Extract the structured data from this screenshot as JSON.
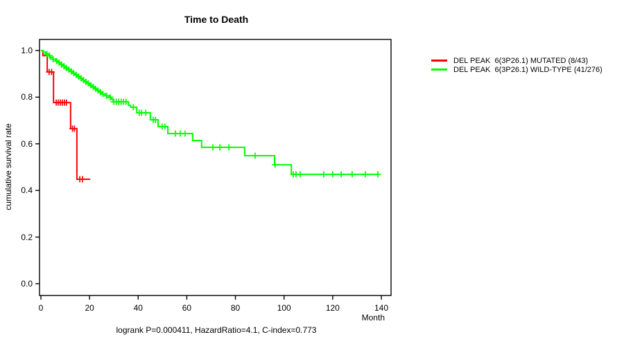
{
  "header": {
    "title": "Time to Death"
  },
  "axes": {
    "y_label": "cumulative survival rate",
    "x_unit": "Month"
  },
  "footer": {
    "stats": "logrank P=0.000411, HazardRatio=4.1, C-index=0.773"
  },
  "legend": {
    "items": [
      {
        "label": "DEL PEAK  6(3P26.1) MUTATED (8/43)",
        "color": "#ff0000"
      },
      {
        "label": "DEL PEAK  6(3P26.1) WILD-TYPE (41/276)",
        "color": "#00ff00"
      }
    ]
  },
  "chart_data": {
    "type": "line",
    "subtype": "kaplan-meier-step",
    "title": "Time to Death",
    "xlabel": "Month",
    "ylabel": "cumulative survival rate",
    "xlim": [
      0,
      140
    ],
    "ylim": [
      0.0,
      1.0
    ],
    "xticks": [
      0,
      20,
      40,
      60,
      80,
      100,
      120,
      140
    ],
    "yticks": [
      0.0,
      0.2,
      0.4,
      0.6,
      0.8,
      1.0
    ],
    "ytick_labels": [
      "0.0",
      "0.2",
      "0.4",
      "0.6",
      "0.8",
      "1.0"
    ],
    "grid": false,
    "legend_position": "right-outside",
    "annotation": "logrank P=0.000411, HazardRatio=4.1, C-index=0.773",
    "series": [
      {
        "name": "DEL PEAK  6(3P26.1) MUTATED (8/43)",
        "color": "#ff0000",
        "steps": [
          [
            0,
            1.0
          ],
          [
            0.8,
            0.978
          ],
          [
            2.6,
            0.908
          ],
          [
            5.2,
            0.777
          ],
          [
            12.2,
            0.665
          ],
          [
            14.8,
            0.448
          ]
        ],
        "end": 20.3,
        "censors": [
          3.4,
          4.4,
          6.3,
          7.1,
          8.0,
          8.8,
          9.7,
          10.5,
          13.0,
          13.8,
          16.0,
          17.1
        ]
      },
      {
        "name": "DEL PEAK  6(3P26.1) WILD-TYPE (41/276)",
        "color": "#00ff00",
        "steps": [
          [
            0,
            1.0
          ],
          [
            1,
            0.993
          ],
          [
            2,
            0.985
          ],
          [
            3,
            0.978
          ],
          [
            4,
            0.97
          ],
          [
            5,
            0.963
          ],
          [
            6,
            0.955
          ],
          [
            7,
            0.948
          ],
          [
            8,
            0.94
          ],
          [
            9,
            0.933
          ],
          [
            10,
            0.925
          ],
          [
            11,
            0.918
          ],
          [
            12,
            0.911
          ],
          [
            13,
            0.903
          ],
          [
            14,
            0.896
          ],
          [
            15,
            0.888
          ],
          [
            16,
            0.881
          ],
          [
            17,
            0.873
          ],
          [
            18,
            0.866
          ],
          [
            19,
            0.859
          ],
          [
            20,
            0.851
          ],
          [
            21,
            0.844
          ],
          [
            22,
            0.836
          ],
          [
            23,
            0.829
          ],
          [
            24,
            0.821
          ],
          [
            25,
            0.814
          ],
          [
            26.5,
            0.806
          ],
          [
            28,
            0.799
          ],
          [
            29,
            0.791
          ],
          [
            29.7,
            0.78
          ],
          [
            36,
            0.765
          ],
          [
            36.9,
            0.757
          ],
          [
            39.4,
            0.733
          ],
          [
            45,
            0.703
          ],
          [
            48.2,
            0.674
          ],
          [
            52.2,
            0.644
          ],
          [
            62.4,
            0.614
          ],
          [
            66.1,
            0.585
          ],
          [
            83.8,
            0.549
          ],
          [
            96.1,
            0.51
          ],
          [
            103,
            0.469
          ]
        ],
        "end": 139,
        "censors": [
          2.5,
          3.5,
          5,
          6.5,
          7.5,
          8.5,
          9.5,
          10.5,
          11.5,
          12.5,
          13.5,
          14.5,
          15.5,
          16.5,
          17.5,
          18.5,
          19.5,
          20.5,
          21.5,
          22.5,
          23.5,
          24.5,
          25.5,
          27,
          28.5,
          30,
          31,
          32,
          33,
          34,
          35,
          38,
          40.5,
          41.4,
          43.1,
          46.2,
          47.1,
          49.9,
          51,
          55.3,
          57.3,
          59.3,
          70.7,
          73.6,
          77.3,
          88.1,
          96.3,
          103.8,
          104.9,
          106.6,
          116.3,
          120,
          123.5,
          128,
          133.4,
          138.6
        ]
      }
    ]
  }
}
